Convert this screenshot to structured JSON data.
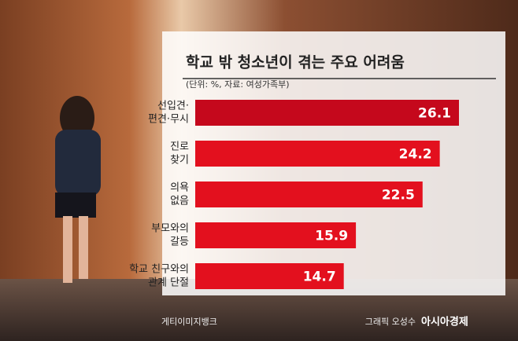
{
  "chart_data": {
    "type": "bar",
    "orientation": "horizontal",
    "title": "학교 밖 청소년이 겪는 주요 어려움",
    "subtitle": "(단위: %, 자료: 여성가족부)",
    "categories": [
      [
        "선입견·",
        "편견·무시"
      ],
      [
        "진로",
        "찾기"
      ],
      [
        "의욕",
        "없음"
      ],
      [
        "부모와의",
        "갈등"
      ],
      [
        "학교 친구와의",
        "관계 단절"
      ]
    ],
    "values": [
      26.1,
      24.2,
      22.5,
      15.9,
      14.7
    ],
    "colors": [
      "#c5081c",
      "#e3101e",
      "#e3101e",
      "#e3101e",
      "#e3101e"
    ],
    "photo_credit": "게티이미지뱅크",
    "graphic_credit": "그래픽 오성수",
    "publisher": "아시아경제"
  }
}
